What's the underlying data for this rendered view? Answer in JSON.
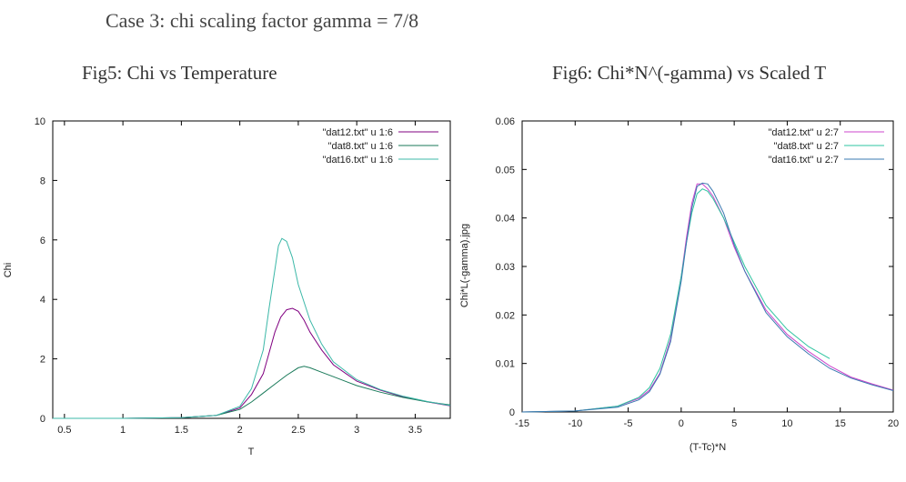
{
  "page_title": "Case 3: chi scaling factor gamma = 7/8",
  "chart_data": [
    {
      "type": "line",
      "title": "Fig5: Chi vs Temperature",
      "xlabel": "T",
      "ylabel": "Chi",
      "xlim": [
        0.4,
        3.8
      ],
      "ylim": [
        0,
        10
      ],
      "xticks": [
        0.5,
        1,
        1.5,
        2,
        2.5,
        3,
        3.5
      ],
      "yticks": [
        0,
        2,
        4,
        6,
        8,
        10
      ],
      "grid": false,
      "legend_position": "top-right",
      "series": [
        {
          "name": "\"dat12.txt\" u 1:6",
          "color": "#800080",
          "x": [
            0.4,
            1.0,
            1.5,
            1.8,
            2.0,
            2.1,
            2.2,
            2.25,
            2.3,
            2.35,
            2.4,
            2.45,
            2.5,
            2.55,
            2.6,
            2.7,
            2.8,
            3.0,
            3.2,
            3.4,
            3.6,
            3.8
          ],
          "y": [
            0.0,
            0.0,
            0.02,
            0.1,
            0.35,
            0.8,
            1.5,
            2.2,
            2.9,
            3.4,
            3.65,
            3.7,
            3.6,
            3.3,
            2.9,
            2.3,
            1.8,
            1.25,
            0.95,
            0.72,
            0.56,
            0.42
          ]
        },
        {
          "name": "\"dat8.txt\" u 1:6",
          "color": "#1a7a5a",
          "x": [
            0.4,
            1.0,
            1.5,
            1.8,
            2.0,
            2.1,
            2.2,
            2.3,
            2.4,
            2.5,
            2.55,
            2.6,
            2.7,
            2.8,
            3.0,
            3.2,
            3.4,
            3.6,
            3.8
          ],
          "y": [
            0.0,
            0.0,
            0.02,
            0.1,
            0.3,
            0.55,
            0.85,
            1.15,
            1.45,
            1.7,
            1.75,
            1.7,
            1.55,
            1.4,
            1.1,
            0.88,
            0.7,
            0.56,
            0.45
          ]
        },
        {
          "name": "\"dat16.txt\" u 1:6",
          "color": "#3cb8a8",
          "x": [
            0.4,
            1.0,
            1.5,
            1.8,
            2.0,
            2.1,
            2.2,
            2.25,
            2.3,
            2.33,
            2.36,
            2.4,
            2.45,
            2.5,
            2.6,
            2.7,
            2.8,
            3.0,
            3.2,
            3.4,
            3.6,
            3.8
          ],
          "y": [
            0.0,
            0.0,
            0.02,
            0.1,
            0.4,
            1.0,
            2.3,
            3.7,
            5.0,
            5.8,
            6.05,
            5.95,
            5.4,
            4.5,
            3.3,
            2.5,
            1.9,
            1.3,
            0.97,
            0.74,
            0.57,
            0.43
          ]
        }
      ]
    },
    {
      "type": "line",
      "title": "Fig6: Chi*N^(-gamma) vs Scaled T",
      "xlabel": "(T-Tc)*N",
      "ylabel": "Chi*L(-gamma).jpg",
      "xlim": [
        -15,
        20
      ],
      "ylim": [
        0,
        0.06
      ],
      "xticks": [
        -15,
        -10,
        -5,
        0,
        5,
        10,
        15,
        20
      ],
      "yticks": [
        0,
        0.01,
        0.02,
        0.03,
        0.04,
        0.05,
        0.06
      ],
      "grid": false,
      "legend_position": "top-right",
      "series": [
        {
          "name": "\"dat12.txt\" u 2:7",
          "color": "#cc44cc",
          "x": [
            -15,
            -10,
            -6,
            -4,
            -3,
            -2,
            -1,
            0,
            0.5,
            1,
            1.5,
            2,
            2.5,
            3,
            4,
            5,
            6,
            8,
            10,
            12,
            14,
            16,
            18,
            20
          ],
          "y": [
            0.0,
            0.0002,
            0.0012,
            0.0028,
            0.0045,
            0.008,
            0.015,
            0.028,
            0.036,
            0.043,
            0.047,
            0.047,
            0.046,
            0.0445,
            0.04,
            0.034,
            0.029,
            0.021,
            0.016,
            0.0125,
            0.0095,
            0.0072,
            0.0058,
            0.0045
          ]
        },
        {
          "name": "\"dat8.txt\" u 2:7",
          "color": "#2ec4a0",
          "x": [
            -15,
            -10,
            -6,
            -4,
            -3,
            -2,
            -1,
            0,
            0.5,
            1,
            1.5,
            2,
            2.5,
            3,
            4,
            5,
            6,
            8,
            10,
            12,
            14
          ],
          "y": [
            0.0,
            0.0002,
            0.0012,
            0.003,
            0.005,
            0.009,
            0.016,
            0.028,
            0.035,
            0.041,
            0.045,
            0.046,
            0.0455,
            0.044,
            0.04,
            0.035,
            0.03,
            0.022,
            0.017,
            0.0135,
            0.011
          ]
        },
        {
          "name": "\"dat16.txt\" u 2:7",
          "color": "#3a78b0",
          "x": [
            -15,
            -10,
            -6,
            -4,
            -3,
            -2,
            -1,
            0,
            0.5,
            1,
            1.5,
            2,
            2.5,
            3,
            4,
            5,
            6,
            8,
            10,
            12,
            14,
            16,
            18,
            20
          ],
          "y": [
            0.0,
            0.0002,
            0.001,
            0.0025,
            0.0042,
            0.0078,
            0.0145,
            0.027,
            0.035,
            0.042,
            0.0465,
            0.0472,
            0.047,
            0.0455,
            0.041,
            0.0345,
            0.029,
            0.0205,
            0.0155,
            0.012,
            0.009,
            0.007,
            0.0056,
            0.0044
          ]
        }
      ]
    }
  ]
}
